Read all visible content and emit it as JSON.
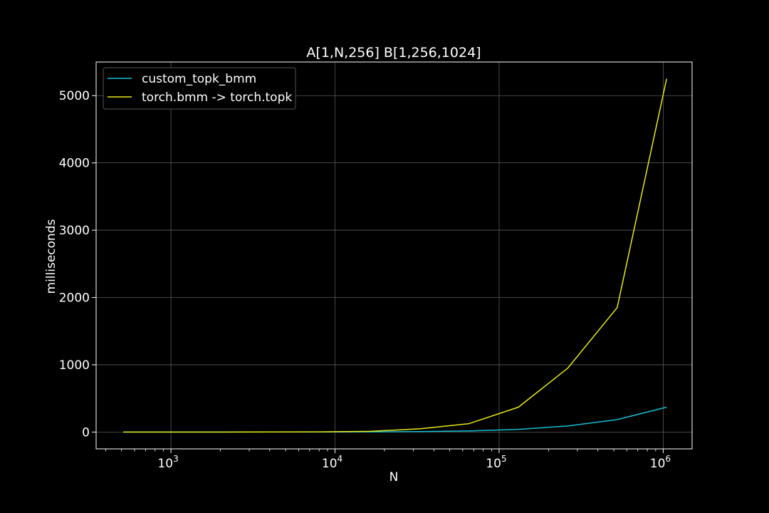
{
  "chart_data": {
    "type": "line",
    "title": "A[1,N,256] B[1,256,1024]",
    "xlabel": "N",
    "ylabel": "milliseconds",
    "xscale": "log",
    "xlim": [
      350,
      1500000
    ],
    "ylim": [
      -250,
      5500
    ],
    "grid": true,
    "legend": "top-left",
    "x_ticks": [
      {
        "base": "10",
        "exp": "3",
        "value": 1000
      },
      {
        "base": "10",
        "exp": "4",
        "value": 10000
      },
      {
        "base": "10",
        "exp": "5",
        "value": 100000
      },
      {
        "base": "10",
        "exp": "6",
        "value": 1000000
      }
    ],
    "y_ticks": [
      0,
      1000,
      2000,
      3000,
      4000,
      5000
    ],
    "x": [
      512,
      1024,
      2048,
      4096,
      8192,
      16384,
      32768,
      65536,
      131072,
      262144,
      524288,
      1048576
    ],
    "series": [
      {
        "name": "custom_topk_bmm",
        "color": "#17becf",
        "values": [
          0,
          0,
          0,
          0.5,
          1,
          3,
          7,
          16,
          40,
          90,
          185,
          370
        ]
      },
      {
        "name": "torch.bmm -> torch.topk",
        "color": "#e8e81a",
        "values": [
          0,
          0,
          0,
          1,
          3,
          10,
          48,
          125,
          370,
          950,
          1850,
          5250
        ]
      }
    ]
  }
}
